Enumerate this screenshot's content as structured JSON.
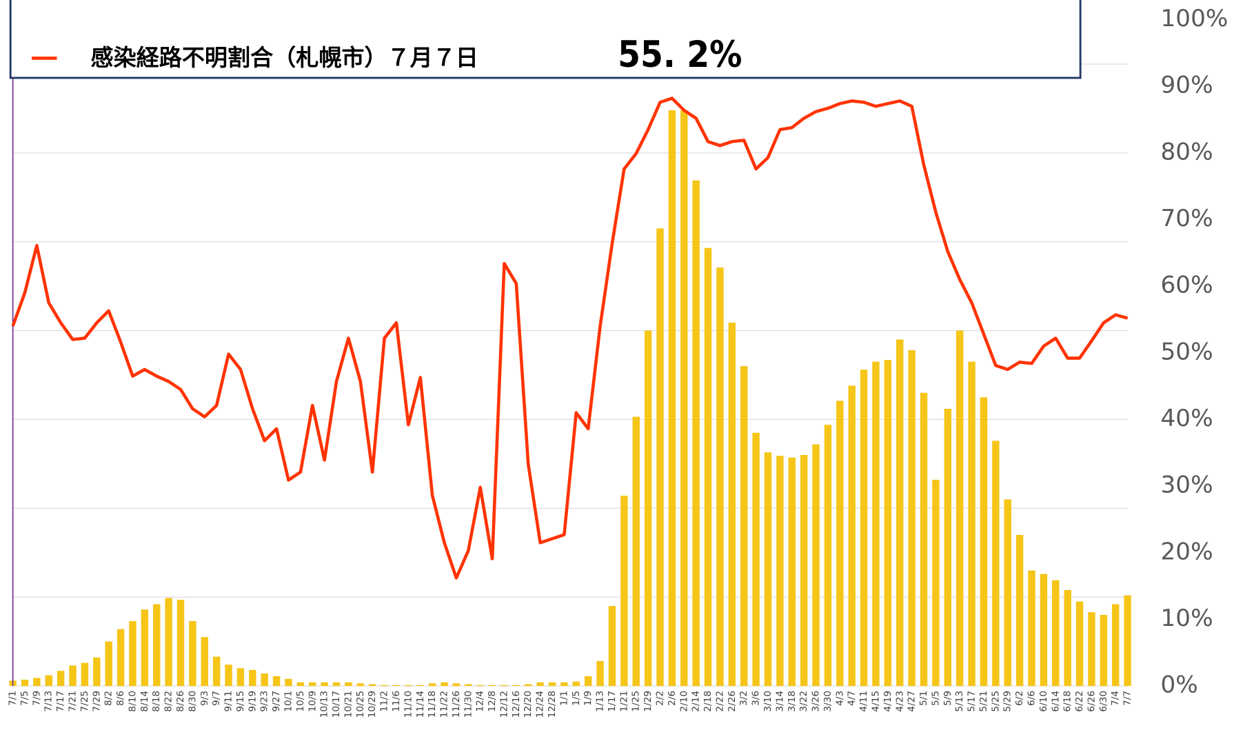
{
  "chart_data": {
    "type": "bar-line",
    "annotation": "55. 2%",
    "categories": [
      "7/1",
      "7/5",
      "7/9",
      "7/13",
      "7/17",
      "7/21",
      "7/25",
      "7/29",
      "8/2",
      "8/6",
      "8/10",
      "8/14",
      "8/18",
      "8/22",
      "8/26",
      "8/30",
      "9/3",
      "9/7",
      "9/11",
      "9/15",
      "9/19",
      "9/23",
      "9/27",
      "10/1",
      "10/5",
      "10/9",
      "10/13",
      "10/17",
      "10/21",
      "10/25",
      "10/29",
      "11/2",
      "11/6",
      "11/10",
      "11/14",
      "11/18",
      "11/22",
      "11/26",
      "11/30",
      "12/4",
      "12/8",
      "12/12",
      "12/16",
      "12/20",
      "12/24",
      "12/28",
      "1/1",
      "1/5",
      "1/9",
      "1/13",
      "1/17",
      "1/21",
      "1/25",
      "1/29",
      "2/2",
      "2/6",
      "2/10",
      "2/14",
      "2/18",
      "2/22",
      "2/26",
      "3/2",
      "3/6",
      "3/10",
      "3/14",
      "3/18",
      "3/22",
      "3/26",
      "3/30",
      "4/3",
      "4/7",
      "4/11",
      "4/15",
      "4/19",
      "4/23",
      "4/27",
      "5/1",
      "5/5",
      "5/9",
      "5/13",
      "5/17",
      "5/21",
      "5/25",
      "5/29",
      "6/2",
      "6/6",
      "6/10",
      "6/14",
      "6/18",
      "6/22",
      "6/26",
      "6/30",
      "7/4",
      "7/7"
    ],
    "series": [
      {
        "type": "bar",
        "axis": "y2",
        "color": "#f5c518",
        "values": [
          6,
          7,
          9,
          12,
          17,
          23,
          26,
          32,
          50,
          64,
          73,
          86,
          92,
          99,
          97,
          73,
          55,
          33,
          24,
          20,
          18,
          14,
          11,
          8,
          4,
          4,
          4,
          4,
          4,
          3,
          2,
          1,
          1,
          1,
          1,
          3,
          4,
          3,
          2,
          1,
          1,
          1,
          1,
          2,
          4,
          4,
          4,
          5,
          11,
          28,
          90,
          214,
          303,
          400,
          515,
          648,
          648,
          569,
          493,
          471,
          409,
          360,
          285,
          263,
          259,
          257,
          260,
          272,
          294,
          321,
          338,
          356,
          365,
          367,
          390,
          378,
          330,
          232,
          312,
          400,
          365,
          325,
          276,
          210,
          170,
          130,
          126,
          119,
          108,
          95,
          83,
          80,
          92,
          102
        ]
      },
      {
        "type": "line",
        "name": "感染経路不明割合（札幌市）７月７日",
        "color": "#ff3300",
        "values": [
          54.0,
          59.0,
          66.1,
          57.5,
          54.5,
          52.0,
          52.2,
          54.5,
          56.3,
          51.6,
          46.5,
          47.5,
          46.5,
          45.7,
          44.5,
          41.6,
          40.4,
          42.1,
          49.8,
          47.5,
          41.6,
          36.8,
          38.6,
          30.9,
          32.1,
          42.1,
          33.9,
          45.7,
          52.2,
          45.7,
          32.1,
          52.2,
          54.5,
          39.2,
          46.3,
          28.6,
          21.5,
          16.2,
          20.3,
          29.8,
          19.1,
          63.4,
          60.4,
          33.3,
          21.5,
          22.1,
          22.7,
          41.0,
          38.6,
          54.0,
          66.4,
          77.6,
          79.9,
          83.5,
          87.6,
          88.2,
          86.4,
          85.2,
          81.7,
          81.1,
          81.7,
          81.9,
          77.6,
          79.3,
          83.5,
          83.8,
          85.2,
          86.2,
          86.7,
          87.4,
          87.8,
          87.6,
          87.0,
          87.4,
          87.8,
          87.0,
          78.2,
          71.1,
          65.2,
          61.0,
          57.5,
          52.8,
          48.1,
          47.5,
          48.6,
          48.4,
          51.0,
          52.2,
          49.2,
          49.2,
          51.8,
          54.5,
          55.7,
          55.2
        ]
      }
    ],
    "ylim": [
      0,
      100
    ],
    "yticks": [
      {
        "value": 0,
        "label": "0%"
      },
      {
        "value": 10,
        "label": "10%"
      },
      {
        "value": 20,
        "label": "20%"
      },
      {
        "value": 30,
        "label": "30%"
      },
      {
        "value": 40,
        "label": "40%"
      },
      {
        "value": 50,
        "label": "50%"
      },
      {
        "value": 60,
        "label": "60%"
      },
      {
        "value": 70,
        "label": "70%"
      },
      {
        "value": 80,
        "label": "80%"
      },
      {
        "value": 90,
        "label": "90%"
      },
      {
        "value": 100,
        "label": "100%"
      }
    ],
    "y2lim": [
      0,
      750
    ],
    "y2ticks": [
      0,
      100,
      200,
      300,
      400,
      500,
      600,
      700
    ],
    "grid": true
  }
}
